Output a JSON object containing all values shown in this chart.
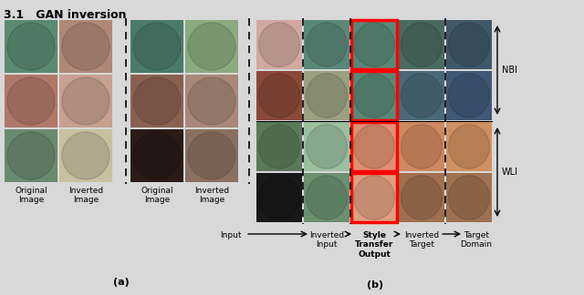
{
  "title": "3.1   GAN inversion",
  "title_fontsize": 9,
  "fig_width": 6.4,
  "fig_height": 3.24,
  "background_color": "#d8d8d8",
  "section_a_label": "(a)",
  "section_b_label": "(b)",
  "left_colors": [
    [
      "#5a8a70",
      "#b08878",
      "#4a7a6a",
      "#8aaa80"
    ],
    [
      "#b07868",
      "#c8a090",
      "#8a6050",
      "#a88878"
    ],
    [
      "#6a8a70",
      "#c8c0a0",
      "#2a1a18",
      "#8a7060"
    ]
  ],
  "right_colors": [
    [
      "#d0a8a0",
      "#5a8878",
      "#5a8878",
      "#4a6a60",
      "#405868"
    ],
    [
      "#8a4838",
      "#9aa080",
      "#5a8878",
      "#4a6878",
      "#405878"
    ],
    [
      "#5a7a5a",
      "#9ac0a0",
      "#e09070",
      "#d08860",
      "#d09060"
    ],
    [
      "#181818",
      "#6a9070",
      "#e0a080",
      "#a07050",
      "#a07050"
    ]
  ],
  "nbi_label": "NBI",
  "wli_label": "WLI",
  "left_bottom_labels": [
    "Original\nImage",
    "Inverted\nImage",
    "Original\nImage",
    "Inverted\nImage"
  ],
  "bottom_labels_b": [
    "Input",
    "Inverted\nInput",
    "Style\nTransfer\nOutput",
    "Inverted\nTarget",
    "Target\nDomain"
  ]
}
